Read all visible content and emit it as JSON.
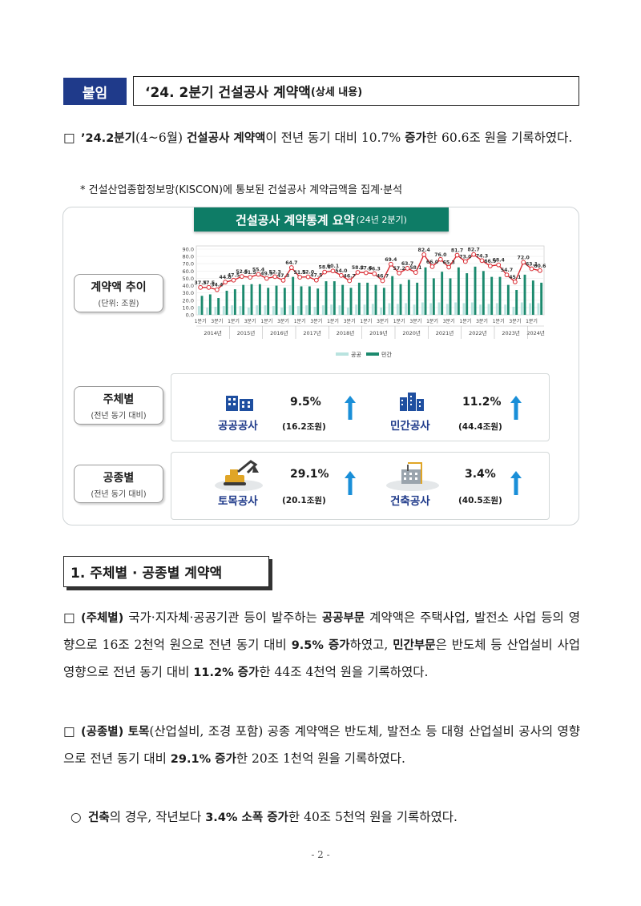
{
  "header": {
    "tag": "붙임",
    "title_main": "‘24. 2분기 건설공사 계약액",
    "title_sub": "(상세 내용)"
  },
  "summary": {
    "p1": "’24.2분기",
    "p2": "(4~6월) ",
    "p3": "건설공사 계약액",
    "p4": "이 전년 동기 대비 10.7% ",
    "p5": "증가",
    "p6": "한 60.6조 원을 기록하였다.",
    "note": "* 건설산업종합정보망(KISCON)에 통보된 건설공사 계약금액을 집계·분석"
  },
  "panel": {
    "banner": "건설공사 계약통계 요약",
    "banner_sub": "(24년 2분기)",
    "labels": {
      "trend": "계약액 추이",
      "trend_sub": "(단위: 조원)",
      "by_entity": "주체별",
      "by_entity_sub": "(전년 동기 대비)",
      "by_type": "공종별",
      "by_type_sub": "(전년 동기 대비)"
    },
    "kpi": {
      "public_name": "공공공사",
      "public_pct": "9.5%",
      "public_amt": "(16.2조원)",
      "private_name": "민간공사",
      "private_pct": "11.2%",
      "private_amt": "(44.4조원)",
      "civil_name": "토목공사",
      "civil_pct": "29.1%",
      "civil_amt": "(20.1조원)",
      "building_name": "건축공사",
      "building_pct": "3.4%",
      "building_amt": "(40.5조원)"
    },
    "colors": {
      "banner": "#0e7c66",
      "arrow": "#1a8fd8",
      "title_blue": "#1f3a8a",
      "private_bar": "#1c8a6e",
      "public_bar": "#b9e3df",
      "total_line": "#d9282f"
    }
  },
  "chart_data": {
    "type": "bar",
    "y_ticks": [
      "90.0",
      "80.0",
      "70.0",
      "60.0",
      "50.0",
      "40.0",
      "30.0",
      "20.0",
      "10.0",
      "0.0"
    ],
    "ylim": [
      0,
      90
    ],
    "quarter_labels": [
      "1분기",
      "3분기"
    ],
    "years": [
      "2014년",
      "2015년",
      "2016년",
      "2017년",
      "2018년",
      "2019년",
      "2020년",
      "2021년",
      "2022년",
      "2023년",
      "2024년"
    ],
    "legend": [
      "공공",
      "민간"
    ],
    "total_labels": [
      "37.5",
      "37.5",
      "34.4",
      "44.8",
      "47.5",
      "52.5",
      "51.5",
      "55.4",
      "49.9",
      "52.3",
      "47.3",
      "64.7",
      "51.5",
      "52.0",
      "47.5",
      "58.6",
      "60.1",
      "54.0",
      "46.7",
      "58.2",
      "57.6",
      "56.3",
      "46.7",
      "69.4",
      "57.2",
      "63.7",
      "58.1",
      "82.4",
      "66.0",
      "76.0",
      "65.3",
      "81.7",
      "73.0",
      "82.7",
      "74.3",
      "66.9",
      "68.4",
      "54.7",
      "45.1",
      "72.0",
      "63.1",
      "60.6"
    ],
    "series": [
      {
        "name": "공공",
        "values": [
          12,
          10,
          11,
          12,
          13,
          12,
          10,
          13,
          13,
          12,
          10,
          13,
          12,
          13,
          11,
          13,
          14,
          13,
          10,
          14,
          14,
          15,
          10,
          16,
          15,
          16,
          14,
          17,
          16,
          17,
          15,
          17,
          16,
          17,
          14,
          15,
          16,
          14,
          11,
          17,
          16,
          16
        ]
      },
      {
        "name": "민간",
        "values": [
          26,
          28,
          23,
          33,
          35,
          41,
          42,
          42,
          37,
          40,
          37,
          52,
          39,
          39,
          36,
          46,
          46,
          41,
          37,
          44,
          44,
          41,
          37,
          53,
          42,
          48,
          44,
          65,
          50,
          59,
          50,
          65,
          57,
          66,
          60,
          52,
          52,
          41,
          34,
          55,
          47,
          44
        ]
      }
    ],
    "total": [
      37.5,
      37.5,
      34.4,
      44.8,
      47.5,
      52.5,
      51.5,
      55.4,
      49.9,
      52.3,
      47.3,
      64.7,
      51.5,
      52.0,
      47.5,
      58.6,
      60.1,
      54.0,
      46.7,
      58.2,
      57.6,
      56.3,
      46.7,
      69.4,
      57.2,
      63.7,
      58.1,
      82.4,
      66.0,
      76.0,
      65.3,
      81.7,
      73.0,
      82.7,
      74.3,
      66.9,
      68.4,
      54.7,
      45.1,
      72.0,
      63.1,
      60.6
    ]
  },
  "section1": {
    "title": "1. 주체별 · 공종별 계약액",
    "para_a": {
      "a1": "(주체별)",
      "a2": " 국가·지자체·공공기관 등이 발주하는 ",
      "a3": "공공부문",
      "a4": " 계약액은 주택사업, 발전소 사업 등의 영향으로 16조 2천억 원으로 전년 동기 대비 ",
      "a5": "9.5% 증가",
      "a6": "하였고, ",
      "a7": "민간부문",
      "a8": "은 반도체 등 산업설비 사업 영향으로 전년 동기 대비 ",
      "a9": "11.2% 증가",
      "a10": "한 44조 4천억 원을 기록하였다."
    },
    "para_b": {
      "b1": "(공종별)",
      "b2": " ",
      "b3": "토목",
      "b4": "(산업설비, 조경 포함) 공종 계약액은 반도체, 발전소 등 대형 산업설비 공사의 영향으로 전년 동기 대비 ",
      "b5": "29.1% 증가",
      "b6": "한 20조 1천억 원을 기록하였다."
    },
    "para_c": {
      "c1": "건축",
      "c2": "의 경우, 작년보다 ",
      "c3": "3.4% 소폭 증가",
      "c4": "한 40조 5천억 원을 기록하였다."
    }
  },
  "footer": {
    "page": "- 2 -"
  }
}
